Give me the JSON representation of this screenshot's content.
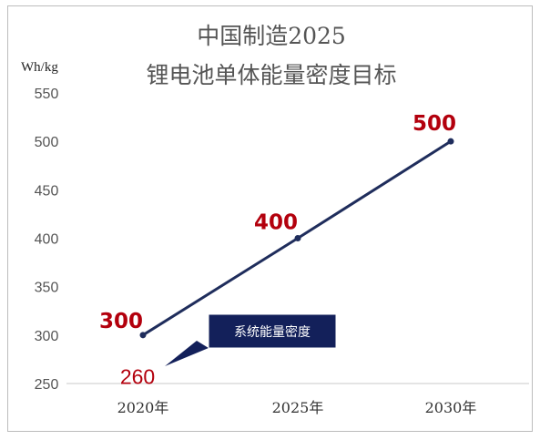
{
  "chart_data": {
    "type": "line",
    "title": [
      "中国制造2025",
      "锂电池单体能量密度目标"
    ],
    "ylabel": "Wh/kg",
    "categories": [
      "2020年",
      "2025年",
      "2030年"
    ],
    "series": [
      {
        "values": [
          300,
          400,
          500
        ]
      }
    ],
    "ylim": [
      250,
      550
    ],
    "yticks": [
      250,
      300,
      350,
      400,
      450,
      500,
      550
    ],
    "grid": false,
    "annotations": [
      {
        "category": "2020年",
        "value": 260,
        "label": "260",
        "callout": "系统能量密度"
      }
    ],
    "colors": {
      "line": "#1f2d5c",
      "data_label": "#b3000d",
      "annotation_value": "#b3000d",
      "callout_bg": "#13205a",
      "callout_text": "#ffffff"
    }
  }
}
